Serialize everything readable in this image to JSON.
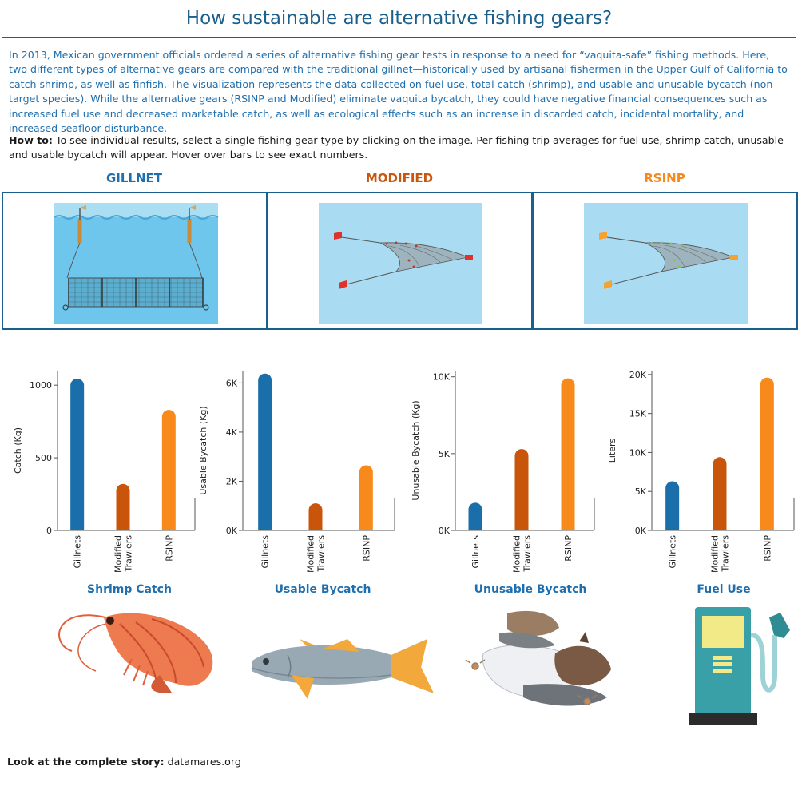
{
  "header": {
    "title": "How sustainable are alternative fishing gears?",
    "intro": "In 2013, Mexican government officials ordered a series of alternative fishing gear tests in response to a need for “vaquita-safe” fishing methods. Here, two different types of alternative gears are compared with the traditional gillnet—historically used by artisanal fishermen in the Upper Gulf of California to catch shrimp, as well as finfish. The visualization represents the data collected on fuel use, total catch (shrimp), and usable and unusable bycatch (non-target species). While the alternative gears (RSINP and Modified) eliminate vaquita bycatch, they could have negative financial consequences such as increased fuel use and decreased marketable catch, as well as ecological effects such as an increase in discarded catch, incidental mortality, and increased seafloor disturbance.",
    "howto_label": "How to:",
    "howto_text": " To see individual results, select a single fishing gear type by clicking on the image. Per fishing trip averages for fuel use, shrimp catch, unusable and usable bycatch will appear. Hover over bars to see exact numbers."
  },
  "gears": [
    {
      "label": "GILLNET",
      "color": "#1f6fae",
      "illustration": "gillnet-illustration"
    },
    {
      "label": "MODIFIED",
      "color": "#c8570e",
      "illustration": "modified-trawl-illustration"
    },
    {
      "label": "RSINP",
      "color": "#f58a1f",
      "illustration": "rsinp-trawl-illustration"
    }
  ],
  "colors": {
    "gillnets": "#1a6fab",
    "modified": "#c8550a",
    "rsinp": "#f88a1c",
    "accent": "#1b5f8c"
  },
  "chart_data": [
    {
      "type": "bar",
      "title": "Shrimp Catch",
      "ylabel": "Catch (Kg)",
      "categories": [
        "Gillnets",
        "Modified Trawlers",
        "RSINP"
      ],
      "values": [
        1045,
        320,
        830
      ],
      "ylim": [
        0,
        1100
      ],
      "yticks": [
        0,
        500,
        1000
      ],
      "ytick_labels": [
        "0",
        "500",
        "1000"
      ]
    },
    {
      "type": "bar",
      "title": "Usable Bycatch",
      "ylabel": "Usable Bycatch (Kg)",
      "categories": [
        "Gillnets",
        "Modified Trawlers",
        "RSINP"
      ],
      "values": [
        6380,
        1100,
        2650
      ],
      "ylim": [
        0,
        6500
      ],
      "yticks": [
        0,
        2000,
        4000,
        6000
      ],
      "ytick_labels": [
        "0K",
        "2K",
        "4K",
        "6K"
      ]
    },
    {
      "type": "bar",
      "title": "Unusable Bycatch",
      "ylabel": "Unusable Bycatch (Kg)",
      "categories": [
        "Gillnets",
        "Modified Trawlers",
        "RSINP"
      ],
      "values": [
        1800,
        5300,
        9900
      ],
      "ylim": [
        0,
        10400
      ],
      "yticks": [
        0,
        5000,
        10000
      ],
      "ytick_labels": [
        "0K",
        "5K",
        "10K"
      ]
    },
    {
      "type": "bar",
      "title": "Fuel Use",
      "ylabel": "Liters",
      "categories": [
        "Gillnets",
        "Modified Trawlers",
        "RSINP"
      ],
      "values": [
        6300,
        9400,
        19600
      ],
      "ylim": [
        0,
        20500
      ],
      "yticks": [
        0,
        5000,
        10000,
        15000,
        20000
      ],
      "ytick_labels": [
        "0K",
        "5K",
        "10K",
        "15K",
        "20K"
      ]
    }
  ],
  "icons": [
    "shrimp-icon",
    "fish-icon",
    "bycatch-pile-icon",
    "fuel-pump-icon"
  ],
  "footer": {
    "label": "Look at the complete story:",
    "link": " datamares.org"
  }
}
